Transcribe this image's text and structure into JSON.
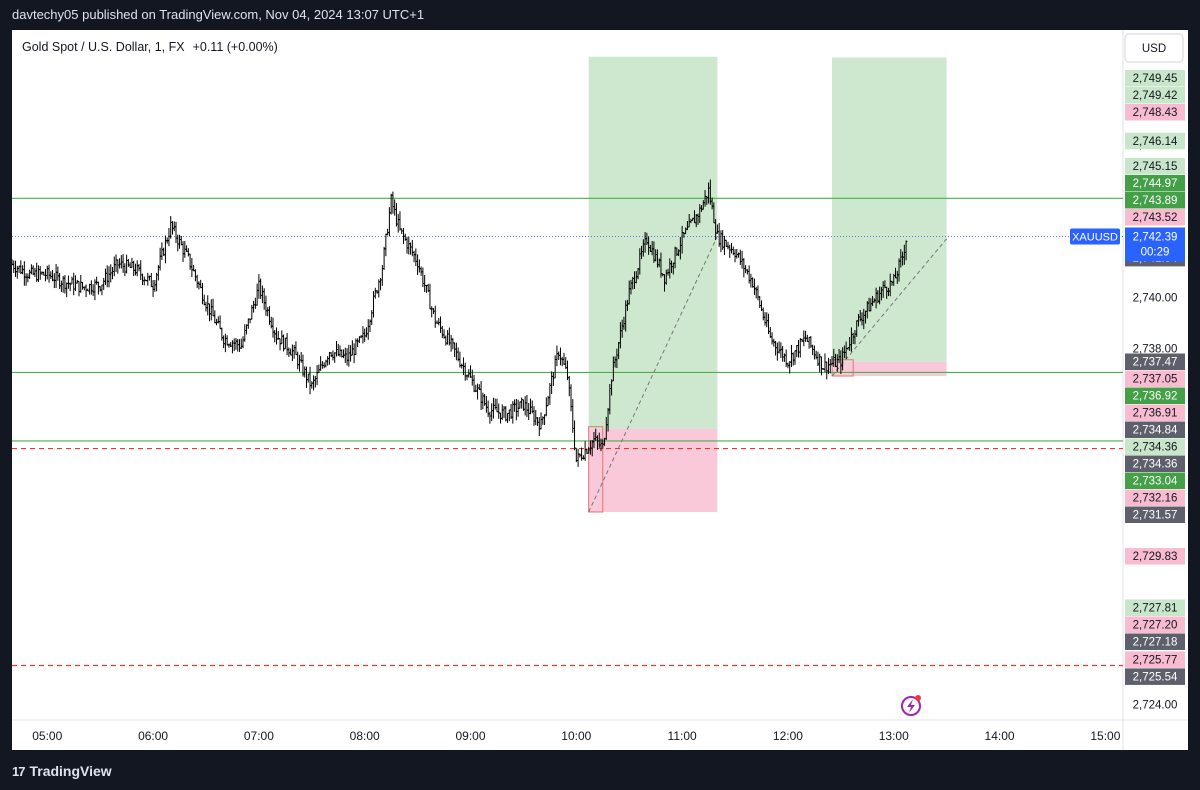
{
  "header": {
    "publisher": "davtechy05 published on TradingView.com, Nov 04, 2024 13:07 UTC+1"
  },
  "footer": {
    "logo_mark": "17",
    "brand": "TradingView"
  },
  "currency": "USD",
  "colors": {
    "up_zone": "#c8e6c9",
    "down_zone": "#f8bbd0",
    "green_line": "#4caf50",
    "red_dash": "#e53935",
    "candle": "#000000",
    "current": "#2962ff"
  },
  "chart_data": {
    "type": "ohlc",
    "title": "Gold Spot / U.S. Dollar, 1, FX",
    "change": "+0.11 (+0.00%)",
    "symbol": "XAUUSD",
    "ylim": [
      2723.4,
      2750.5
    ],
    "xlim": [
      "04:40",
      "15:10"
    ],
    "x_ticks": [
      "05:00",
      "06:00",
      "07:00",
      "08:00",
      "09:00",
      "10:00",
      "11:00",
      "12:00",
      "13:00",
      "14:00",
      "15:00"
    ],
    "y_ticks": [
      2724.0,
      2738.0,
      2740.0,
      2746.0
    ],
    "price_line_points": [
      [
        "04:40",
        2741.3
      ],
      [
        "04:50",
        2740.9
      ],
      [
        "05:00",
        2740.9
      ],
      [
        "05:10",
        2740.6
      ],
      [
        "05:20",
        2740.4
      ],
      [
        "05:30",
        2740.5
      ],
      [
        "05:40",
        2741.3
      ],
      [
        "05:50",
        2741.1
      ],
      [
        "06:00",
        2740.5
      ],
      [
        "06:10",
        2742.8
      ],
      [
        "06:20",
        2741.5
      ],
      [
        "06:30",
        2739.8
      ],
      [
        "06:40",
        2738.4
      ],
      [
        "06:50",
        2738.1
      ],
      [
        "07:00",
        2740.4
      ],
      [
        "07:10",
        2738.5
      ],
      [
        "07:20",
        2737.8
      ],
      [
        "07:30",
        2736.5
      ],
      [
        "07:40",
        2737.9
      ],
      [
        "07:50",
        2737.6
      ],
      [
        "08:00",
        2738.5
      ],
      [
        "08:10",
        2741.2
      ],
      [
        "08:15",
        2743.8
      ],
      [
        "08:20",
        2742.6
      ],
      [
        "08:30",
        2741.4
      ],
      [
        "08:40",
        2739.1
      ],
      [
        "08:50",
        2738.0
      ],
      [
        "09:00",
        2736.8
      ],
      [
        "09:10",
        2735.6
      ],
      [
        "09:20",
        2735.4
      ],
      [
        "09:30",
        2735.8
      ],
      [
        "09:40",
        2735.0
      ],
      [
        "09:50",
        2737.9
      ],
      [
        "09:55",
        2736.9
      ],
      [
        "10:00",
        2733.6
      ],
      [
        "10:10",
        2734.4
      ],
      [
        "10:15",
        2734.1
      ],
      [
        "10:20",
        2736.9
      ],
      [
        "10:30",
        2740.2
      ],
      [
        "10:40",
        2742.3
      ],
      [
        "10:50",
        2740.8
      ],
      [
        "11:00",
        2742.3
      ],
      [
        "11:10",
        2743.4
      ],
      [
        "11:15",
        2744.2
      ],
      [
        "11:20",
        2742.4
      ],
      [
        "11:30",
        2741.8
      ],
      [
        "11:40",
        2740.6
      ],
      [
        "11:50",
        2738.4
      ],
      [
        "12:00",
        2737.5
      ],
      [
        "12:10",
        2738.4
      ],
      [
        "12:20",
        2737.3
      ],
      [
        "12:30",
        2737.5
      ],
      [
        "12:40",
        2739.1
      ],
      [
        "12:50",
        2740.0
      ],
      [
        "12:55",
        2740.4
      ],
      [
        "13:00",
        2740.6
      ],
      [
        "13:05",
        2741.6
      ],
      [
        "13:07",
        2742.3
      ]
    ],
    "horizontal_lines": [
      {
        "price": 2743.89,
        "style": "solid",
        "color": "green"
      },
      {
        "price": 2737.05,
        "style": "solid",
        "color": "green"
      },
      {
        "price": 2734.36,
        "style": "solid",
        "color": "green"
      },
      {
        "price": 2734.06,
        "style": "dashed",
        "color": "red"
      },
      {
        "price": 2725.54,
        "style": "dashed",
        "color": "red"
      }
    ],
    "positions": [
      {
        "side": "long",
        "start": "10:07",
        "end": "11:20",
        "entry": 2734.84,
        "target": 2749.45,
        "stop": 2731.57,
        "entry_box_end": "10:15"
      },
      {
        "side": "long",
        "start": "12:25",
        "end": "13:30",
        "entry": 2737.47,
        "target": 2749.42,
        "stop": 2736.91,
        "entry_box_end": "12:37"
      }
    ],
    "current_price": {
      "symbol": "XAUUSD",
      "value": "2,742.39",
      "countdown": "00:29"
    },
    "price_labels": [
      {
        "text": "2,749.45",
        "price": 2749.45,
        "kind": "green"
      },
      {
        "text": "2,749.42",
        "price": 2749.42,
        "kind": "green"
      },
      {
        "text": "2,748.43",
        "price": 2748.43,
        "kind": "red"
      },
      {
        "text": "2,746.14",
        "price": 2746.14,
        "kind": "green"
      },
      {
        "text": "2,745.15",
        "price": 2745.15,
        "kind": "green"
      },
      {
        "text": "2,744.97",
        "price": 2744.97,
        "kind": "darkgreen"
      },
      {
        "text": "2,743.89",
        "price": 2743.89,
        "kind": "darkgreen"
      },
      {
        "text": "2,743.52",
        "price": 2743.52,
        "kind": "red"
      },
      {
        "text": "2,741.54",
        "price": 2741.54,
        "kind": "gray"
      },
      {
        "text": "2,737.47",
        "price": 2737.47,
        "kind": "gray"
      },
      {
        "text": "2,737.05",
        "price": 2737.05,
        "kind": "red"
      },
      {
        "text": "2,736.92",
        "price": 2736.92,
        "kind": "darkgreen"
      },
      {
        "text": "2,736.91",
        "price": 2736.91,
        "kind": "red"
      },
      {
        "text": "2,734.84",
        "price": 2734.84,
        "kind": "gray"
      },
      {
        "text": "2,734.36",
        "price": 2734.36,
        "kind": "green"
      },
      {
        "text": "2,734.36",
        "price": 2734.36,
        "kind": "gray"
      },
      {
        "text": "2,733.04",
        "price": 2733.04,
        "kind": "darkgreen"
      },
      {
        "text": "2,732.16",
        "price": 2732.16,
        "kind": "red"
      },
      {
        "text": "2,731.57",
        "price": 2731.57,
        "kind": "gray"
      },
      {
        "text": "2,729.83",
        "price": 2729.83,
        "kind": "red"
      },
      {
        "text": "2,727.81",
        "price": 2727.81,
        "kind": "green"
      },
      {
        "text": "2,727.20",
        "price": 2727.2,
        "kind": "red"
      },
      {
        "text": "2,727.18",
        "price": 2727.18,
        "kind": "gray"
      },
      {
        "text": "2,725.77",
        "price": 2725.77,
        "kind": "red"
      },
      {
        "text": "2,725.54",
        "price": 2725.54,
        "kind": "gray"
      }
    ]
  }
}
